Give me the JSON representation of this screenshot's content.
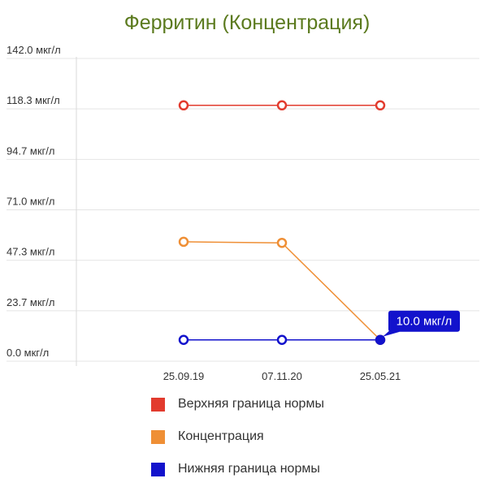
{
  "chart_data": {
    "type": "line",
    "title": "Ферритин (Концентрация)",
    "categories": [
      "25.09.19",
      "07.11.20",
      "25.05.21"
    ],
    "y_tick_labels": [
      "0.0 мкг/л",
      "23.7 мкг/л",
      "47.3 мкг/л",
      "71.0 мкг/л",
      "94.7 мкг/л",
      "118.3 мкг/л",
      "142.0 мкг/л"
    ],
    "ylim": [
      0,
      142
    ],
    "grid": true,
    "legend_position": "bottom",
    "series": [
      {
        "name": "Верхняя граница нормы",
        "color": "#e23b2e",
        "values": [
          120,
          120,
          120
        ]
      },
      {
        "name": "Концентрация",
        "color": "#ef8f35",
        "values": [
          56,
          55.5,
          10
        ]
      },
      {
        "name": "Нижняя граница нормы",
        "color": "#1212cc",
        "values": [
          10,
          10,
          10
        ]
      }
    ],
    "tooltip": {
      "text": "10.0 мкг/л",
      "series": 2,
      "index": 2,
      "color": "#1212cc"
    }
  }
}
